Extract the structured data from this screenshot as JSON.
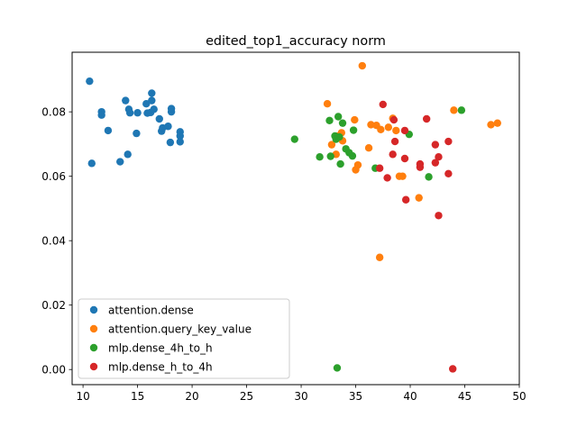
{
  "chart_data": {
    "type": "scatter",
    "title": "edited_top1_accuracy  norm",
    "xlabel": "",
    "ylabel": "",
    "xlim": [
      9,
      50
    ],
    "ylim": [
      -0.0047,
      0.0985
    ],
    "xticks": [
      10,
      15,
      20,
      25,
      30,
      35,
      40,
      45,
      50
    ],
    "yticks": [
      0.0,
      0.02,
      0.04,
      0.06,
      0.08
    ],
    "ytick_labels": [
      "0.00",
      "0.02",
      "0.04",
      "0.06",
      "0.08"
    ],
    "grid": false,
    "legend_position": "lower-left",
    "series": [
      {
        "name": "attention.dense",
        "color": "#1f77b4",
        "points": [
          [
            10.6,
            0.0895
          ],
          [
            10.8,
            0.064
          ],
          [
            11.7,
            0.08
          ],
          [
            11.7,
            0.079
          ],
          [
            12.3,
            0.0742
          ],
          [
            13.4,
            0.0645
          ],
          [
            13.9,
            0.0835
          ],
          [
            14.1,
            0.0668
          ],
          [
            14.2,
            0.0808
          ],
          [
            14.3,
            0.0797
          ],
          [
            14.9,
            0.0733
          ],
          [
            15.0,
            0.0797
          ],
          [
            15.8,
            0.0825
          ],
          [
            15.9,
            0.0796
          ],
          [
            16.2,
            0.0798
          ],
          [
            16.3,
            0.0835
          ],
          [
            16.3,
            0.0858
          ],
          [
            16.5,
            0.0808
          ],
          [
            17.0,
            0.0778
          ],
          [
            17.2,
            0.074
          ],
          [
            17.3,
            0.075
          ],
          [
            17.8,
            0.0755
          ],
          [
            18.0,
            0.0705
          ],
          [
            18.1,
            0.081
          ],
          [
            18.1,
            0.08
          ],
          [
            18.9,
            0.0738
          ],
          [
            18.9,
            0.0725
          ],
          [
            18.9,
            0.0707
          ]
        ]
      },
      {
        "name": "attention.query_key_value",
        "color": "#ff7f0e",
        "points": [
          [
            32.4,
            0.0825
          ],
          [
            32.8,
            0.0698
          ],
          [
            33.2,
            0.0668
          ],
          [
            33.4,
            0.0725
          ],
          [
            33.7,
            0.0735
          ],
          [
            33.8,
            0.071
          ],
          [
            34.9,
            0.0775
          ],
          [
            35.0,
            0.062
          ],
          [
            35.2,
            0.0635
          ],
          [
            35.6,
            0.0943
          ],
          [
            36.2,
            0.0688
          ],
          [
            36.4,
            0.076
          ],
          [
            36.9,
            0.0758
          ],
          [
            37.2,
            0.0348
          ],
          [
            37.3,
            0.0745
          ],
          [
            38.0,
            0.0752
          ],
          [
            38.4,
            0.078
          ],
          [
            38.7,
            0.0742
          ],
          [
            39.0,
            0.06
          ],
          [
            39.3,
            0.06
          ],
          [
            40.8,
            0.0533
          ],
          [
            44.0,
            0.0805
          ],
          [
            47.4,
            0.076
          ],
          [
            48.0,
            0.0765
          ]
        ]
      },
      {
        "name": "mlp.dense_4h_to_h",
        "color": "#2ca02c",
        "points": [
          [
            29.4,
            0.0715
          ],
          [
            31.7,
            0.066
          ],
          [
            32.6,
            0.0773
          ],
          [
            32.7,
            0.0662
          ],
          [
            33.1,
            0.0725
          ],
          [
            33.2,
            0.0715
          ],
          [
            33.3,
            0.0005
          ],
          [
            33.4,
            0.0785
          ],
          [
            33.5,
            0.0722
          ],
          [
            33.6,
            0.0638
          ],
          [
            33.8,
            0.0765
          ],
          [
            34.1,
            0.0685
          ],
          [
            34.4,
            0.0673
          ],
          [
            34.7,
            0.0663
          ],
          [
            34.8,
            0.0743
          ],
          [
            36.8,
            0.0625
          ],
          [
            39.9,
            0.073
          ],
          [
            41.7,
            0.0598
          ],
          [
            44.7,
            0.0805
          ]
        ]
      },
      {
        "name": "mlp.dense_h_to_4h",
        "color": "#d62728",
        "points": [
          [
            37.2,
            0.0625
          ],
          [
            37.5,
            0.0823
          ],
          [
            37.9,
            0.0595
          ],
          [
            38.4,
            0.0668
          ],
          [
            38.5,
            0.0775
          ],
          [
            38.6,
            0.0708
          ],
          [
            39.5,
            0.0655
          ],
          [
            39.5,
            0.0742
          ],
          [
            39.6,
            0.0527
          ],
          [
            40.9,
            0.0638
          ],
          [
            40.9,
            0.0628
          ],
          [
            41.5,
            0.0778
          ],
          [
            42.3,
            0.0698
          ],
          [
            42.3,
            0.0642
          ],
          [
            42.6,
            0.066
          ],
          [
            42.6,
            0.0478
          ],
          [
            43.5,
            0.0708
          ],
          [
            43.5,
            0.0608
          ],
          [
            43.9,
            0.0002
          ]
        ]
      }
    ]
  }
}
